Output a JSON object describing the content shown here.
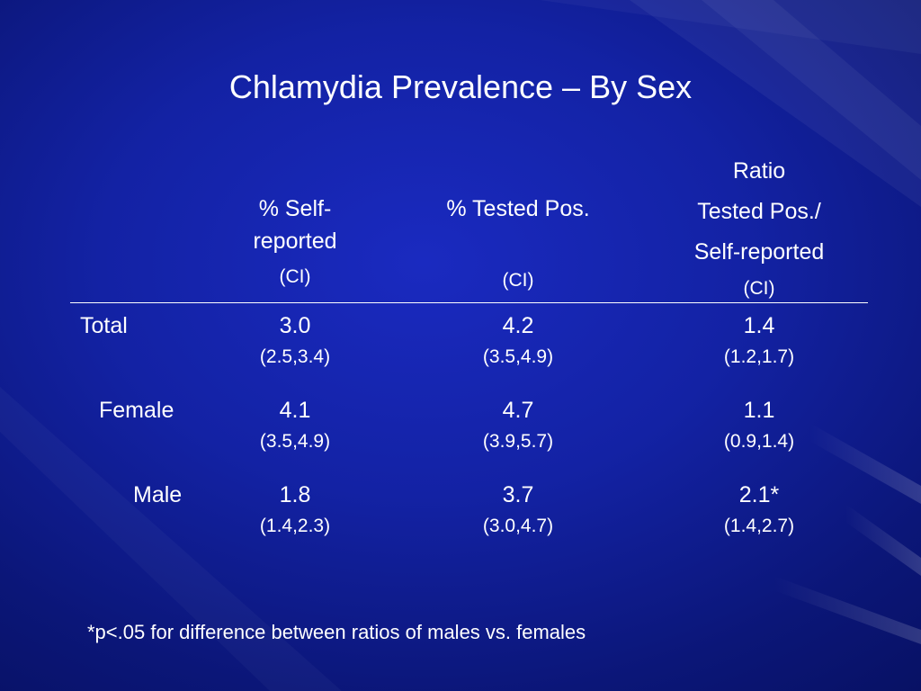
{
  "title": "Chlamydia Prevalence – By Sex",
  "headers": {
    "self_reported": {
      "line1": "% Self-",
      "line2": "reported",
      "ci": "(CI)"
    },
    "tested_pos": {
      "line1": "% Tested Pos.",
      "ci": "(CI)"
    },
    "ratio": {
      "line1": "Ratio",
      "line2": "Tested Pos./",
      "line3": "Self-reported",
      "ci": "(CI)"
    }
  },
  "rows": [
    {
      "label": "Total",
      "self_reported": "3.0",
      "self_ci": "(2.5,3.4)",
      "tested_pos": "4.2",
      "tested_ci": "(3.5,4.9)",
      "ratio": "1.4",
      "ratio_ci": "(1.2,1.7)"
    },
    {
      "label": "Female",
      "self_reported": "4.1",
      "self_ci": "(3.5,4.9)",
      "tested_pos": "4.7",
      "tested_ci": "(3.9,5.7)",
      "ratio": "1.1",
      "ratio_ci": "(0.9,1.4)"
    },
    {
      "label": "Male",
      "self_reported": "1.8",
      "self_ci": "(1.4,2.3)",
      "tested_pos": "3.7",
      "tested_ci": "(3.0,4.7)",
      "ratio": "2.1*",
      "ratio_ci": "(1.4,2.7)"
    }
  ],
  "footnote": "*p<.05 for difference between ratios of males vs. females",
  "colors": {
    "background": "#1322a4",
    "text": "#ffffff"
  }
}
